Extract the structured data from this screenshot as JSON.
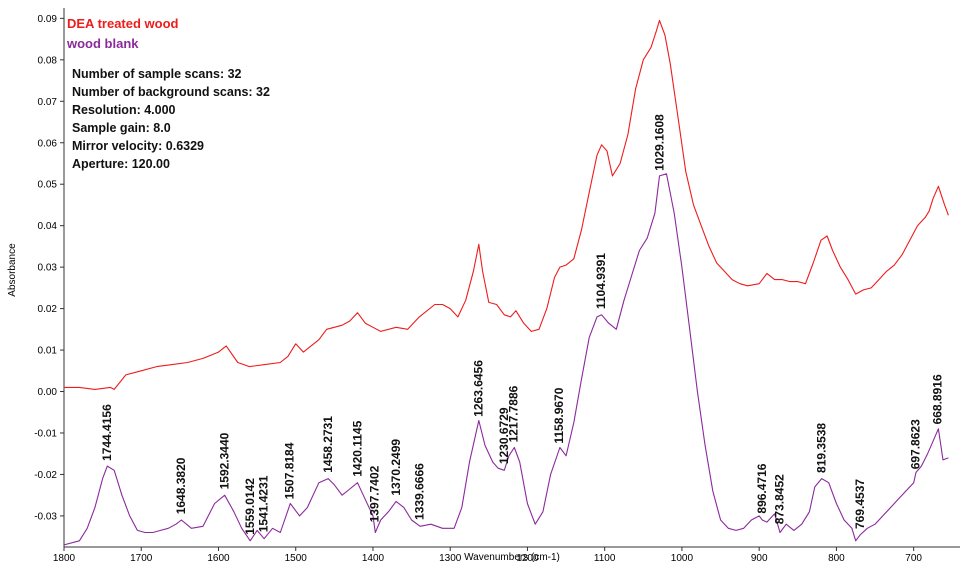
{
  "chart_data": {
    "type": "line",
    "title": "",
    "xlabel": "Wavenumbers (cm-1)",
    "ylabel": "Absorbance",
    "xlim": [
      1800,
      640
    ],
    "ylim": [
      -0.0375,
      0.0925
    ],
    "x_reversed": true,
    "x_ticks": [
      1800,
      1700,
      1600,
      1500,
      1400,
      1300,
      1200,
      1100,
      1000,
      900,
      800,
      700
    ],
    "y_ticks": [
      -0.03,
      -0.02,
      -0.01,
      0.0,
      0.01,
      0.02,
      0.03,
      0.04,
      0.05,
      0.06,
      0.07,
      0.08,
      0.09
    ],
    "y_tick_labels": [
      "-0.03",
      "-0.02",
      "-0.01",
      "0.00",
      "0.01",
      "0.02",
      "0.03",
      "0.04",
      "0.05",
      "0.06",
      "0.07",
      "0.08",
      "0.09"
    ],
    "legend_position": "top-left",
    "series": [
      {
        "name": "DEA treated wood",
        "color": "#ee1c1c",
        "x": [
          1800,
          1780,
          1760,
          1740,
          1735,
          1720,
          1700,
          1680,
          1660,
          1640,
          1620,
          1600,
          1590,
          1575,
          1560,
          1540,
          1520,
          1510,
          1500,
          1490,
          1470,
          1460,
          1450,
          1440,
          1430,
          1420,
          1410,
          1400,
          1390,
          1370,
          1355,
          1340,
          1320,
          1310,
          1300,
          1290,
          1280,
          1270,
          1263,
          1258,
          1250,
          1240,
          1230,
          1222,
          1215,
          1205,
          1195,
          1185,
          1175,
          1165,
          1158,
          1150,
          1140,
          1130,
          1120,
          1110,
          1104,
          1097,
          1090,
          1080,
          1070,
          1060,
          1050,
          1040,
          1033,
          1029,
          1022,
          1015,
          1005,
          995,
          985,
          975,
          965,
          955,
          945,
          935,
          925,
          915,
          900,
          890,
          880,
          870,
          860,
          850,
          840,
          830,
          820,
          812,
          805,
          795,
          785,
          775,
          765,
          755,
          745,
          735,
          725,
          715,
          705,
          695,
          685,
          680,
          675,
          668,
          660,
          655
        ],
        "values": [
          0.001,
          0.001,
          0.0005,
          0.001,
          0.0005,
          0.004,
          0.005,
          0.006,
          0.0065,
          0.007,
          0.008,
          0.0095,
          0.011,
          0.007,
          0.006,
          0.0065,
          0.007,
          0.0085,
          0.0115,
          0.0095,
          0.0125,
          0.015,
          0.0155,
          0.016,
          0.017,
          0.019,
          0.0165,
          0.0155,
          0.0145,
          0.0155,
          0.015,
          0.018,
          0.021,
          0.021,
          0.02,
          0.018,
          0.022,
          0.029,
          0.0355,
          0.029,
          0.0215,
          0.021,
          0.0185,
          0.018,
          0.0195,
          0.0165,
          0.0145,
          0.015,
          0.02,
          0.0275,
          0.03,
          0.0305,
          0.032,
          0.039,
          0.048,
          0.057,
          0.0595,
          0.058,
          0.052,
          0.055,
          0.062,
          0.073,
          0.08,
          0.083,
          0.087,
          0.0895,
          0.086,
          0.079,
          0.066,
          0.053,
          0.045,
          0.04,
          0.035,
          0.031,
          0.029,
          0.027,
          0.026,
          0.0255,
          0.026,
          0.0285,
          0.027,
          0.027,
          0.0265,
          0.0265,
          0.026,
          0.031,
          0.0365,
          0.0375,
          0.034,
          0.03,
          0.027,
          0.0235,
          0.0245,
          0.025,
          0.027,
          0.029,
          0.0305,
          0.033,
          0.0365,
          0.04,
          0.042,
          0.0435,
          0.0465,
          0.0495,
          0.045,
          0.0425
        ]
      },
      {
        "name": "wood blank",
        "color": "#8b2a9c",
        "x": [
          1800,
          1780,
          1770,
          1760,
          1750,
          1744,
          1735,
          1725,
          1715,
          1705,
          1695,
          1685,
          1675,
          1665,
          1655,
          1648,
          1635,
          1620,
          1605,
          1592,
          1580,
          1570,
          1559,
          1550,
          1541,
          1530,
          1520,
          1507,
          1495,
          1485,
          1470,
          1458,
          1450,
          1440,
          1430,
          1420,
          1410,
          1400,
          1397,
          1390,
          1380,
          1370,
          1360,
          1350,
          1339,
          1325,
          1310,
          1295,
          1285,
          1275,
          1263,
          1255,
          1245,
          1238,
          1230,
          1224,
          1217,
          1210,
          1200,
          1190,
          1180,
          1170,
          1158,
          1150,
          1140,
          1130,
          1120,
          1110,
          1104,
          1095,
          1085,
          1075,
          1065,
          1055,
          1045,
          1035,
          1029,
          1020,
          1010,
          1000,
          990,
          980,
          970,
          960,
          950,
          940,
          930,
          920,
          910,
          900,
          896,
          890,
          880,
          873,
          865,
          855,
          845,
          835,
          828,
          819,
          810,
          800,
          790,
          780,
          775,
          769,
          760,
          750,
          740,
          730,
          720,
          710,
          700,
          697,
          690,
          682,
          675,
          668,
          662,
          655
        ],
        "values": [
          -0.037,
          -0.036,
          -0.033,
          -0.028,
          -0.021,
          -0.018,
          -0.019,
          -0.025,
          -0.03,
          -0.0335,
          -0.034,
          -0.034,
          -0.0335,
          -0.033,
          -0.032,
          -0.031,
          -0.033,
          -0.0325,
          -0.027,
          -0.025,
          -0.029,
          -0.033,
          -0.036,
          -0.0335,
          -0.0355,
          -0.033,
          -0.034,
          -0.027,
          -0.03,
          -0.028,
          -0.022,
          -0.021,
          -0.0225,
          -0.025,
          -0.0235,
          -0.022,
          -0.026,
          -0.03,
          -0.034,
          -0.031,
          -0.029,
          -0.0265,
          -0.028,
          -0.031,
          -0.0325,
          -0.032,
          -0.033,
          -0.033,
          -0.028,
          -0.017,
          -0.007,
          -0.013,
          -0.017,
          -0.0185,
          -0.019,
          -0.0155,
          -0.0135,
          -0.017,
          -0.027,
          -0.032,
          -0.029,
          -0.02,
          -0.0135,
          -0.0155,
          -0.0075,
          0.003,
          0.013,
          0.018,
          0.0185,
          0.0165,
          0.015,
          0.022,
          0.028,
          0.034,
          0.037,
          0.043,
          0.052,
          0.0525,
          0.043,
          0.03,
          0.015,
          0.0,
          -0.013,
          -0.024,
          -0.031,
          -0.033,
          -0.0335,
          -0.033,
          -0.031,
          -0.03,
          -0.031,
          -0.0315,
          -0.0295,
          -0.034,
          -0.032,
          -0.0335,
          -0.032,
          -0.029,
          -0.023,
          -0.021,
          -0.022,
          -0.027,
          -0.031,
          -0.033,
          -0.036,
          -0.0345,
          -0.033,
          -0.032,
          -0.03,
          -0.028,
          -0.026,
          -0.024,
          -0.022,
          -0.0195,
          -0.018,
          -0.015,
          -0.012,
          -0.009,
          -0.0165,
          -0.016
        ]
      }
    ],
    "annotations": [
      "1744.4156",
      "1648.3820",
      "1592.3440",
      "1559.0142",
      "1541.4231",
      "1507.8184",
      "1458.2731",
      "1420.1145",
      "1397.7402",
      "1370.2499",
      "1339.6666",
      "1263.6456",
      "1230.6729",
      "1217.7886",
      "1158.9670",
      "1104.9391",
      "1029.1608",
      "896.4716",
      "873.8452",
      "819.3538",
      "769.4537",
      "697.8623",
      "668.8916"
    ],
    "info_lines": [
      "Number of sample scans:  32",
      "Number of background scans:  32",
      "Resolution:   4.000",
      "Sample gain:  8.0",
      "Mirror velocity:  0.6329",
      "Aperture:  120.00"
    ]
  }
}
